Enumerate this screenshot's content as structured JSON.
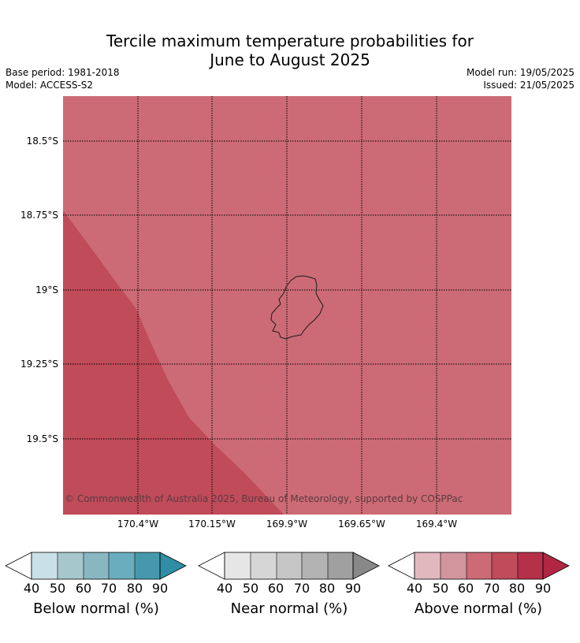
{
  "title_line1": "Tercile maximum temperature probabilities for",
  "title_line2": "June to August 2025",
  "base_period": "Base period: 1981-2018",
  "model": "Model: ACCESS-S2",
  "model_run": "Model run: 19/05/2025",
  "issued": "Issued: 21/05/2025",
  "copyright": "© Commonwealth of Australia 2025, Bureau of Meteorology, supported by COSPPac",
  "lat_labels": [
    "18.5°S",
    "18.75°S",
    "19°S",
    "19.25°S",
    "19.5°S"
  ],
  "lon_labels": [
    "170.4°W",
    "170.15°W",
    "169.9°W",
    "169.65°W",
    "169.4°W"
  ],
  "map_colors": {
    "background": "#cc6b75",
    "above_80_region": "#c04b59",
    "coast_outline": "#1a1a1a",
    "gridline": "#000000"
  },
  "map_regions": [
    {
      "name": "Above normal 70-80%",
      "color": "#cc6b75"
    },
    {
      "name": "Above normal 80-90%",
      "color": "#c04b59"
    }
  ],
  "colorbars": [
    {
      "label": "Below normal (%)",
      "ticks": [
        "40",
        "50",
        "60",
        "70",
        "80",
        "90"
      ],
      "colors": [
        "#c9e0e6",
        "#a6c7cc",
        "#88b7c2",
        "#6aadbe",
        "#4699ad",
        "#2f8ea5"
      ]
    },
    {
      "label": "Near normal (%)",
      "ticks": [
        "40",
        "50",
        "60",
        "70",
        "80",
        "90"
      ],
      "colors": [
        "#e6e6e6",
        "#d6d6d6",
        "#c6c6c6",
        "#b3b3b3",
        "#a0a0a0",
        "#888888"
      ]
    },
    {
      "label": "Above normal (%)",
      "ticks": [
        "40",
        "50",
        "60",
        "70",
        "80",
        "90"
      ],
      "colors": [
        "#e1b8bd",
        "#d3959d",
        "#cc6b75",
        "#c04b59",
        "#b73049",
        "#b02643"
      ]
    }
  ]
}
